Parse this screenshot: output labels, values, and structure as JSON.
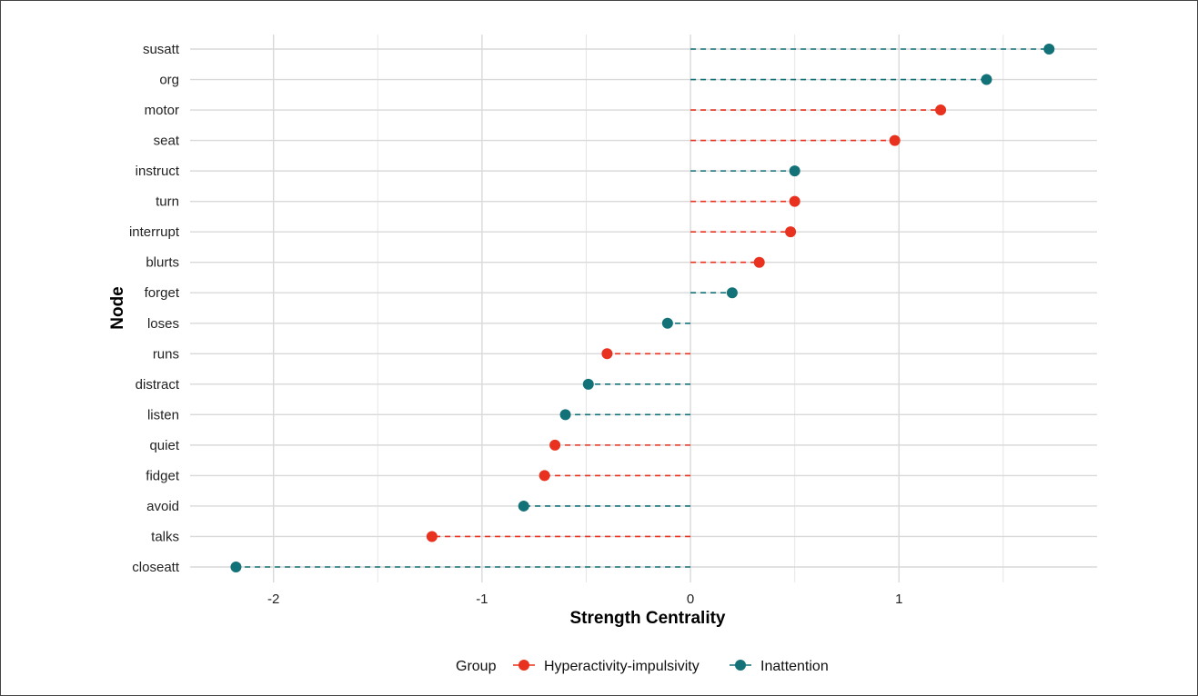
{
  "chart_data": {
    "type": "scatter",
    "style": "lollipop",
    "xlabel": "Strength Centrality",
    "ylabel": "Node",
    "xlim": [
      -2.4,
      1.95
    ],
    "x_ticks": [
      -2,
      -1,
      0,
      1
    ],
    "x_tick_labels": [
      "-2",
      "-1",
      "0",
      "1"
    ],
    "grid": true,
    "legend": {
      "title": "Group",
      "position": "bottom",
      "entries": [
        "Hyperactivity-impulsivity",
        "Inattention"
      ]
    },
    "colors": {
      "Hyperactivity-impulsivity": "#e8321f",
      "Inattention": "#137178"
    },
    "categories": [
      "susatt",
      "org",
      "motor",
      "seat",
      "instruct",
      "turn",
      "interrupt",
      "blurts",
      "forget",
      "loses",
      "runs",
      "distract",
      "listen",
      "quiet",
      "fidget",
      "avoid",
      "talks",
      "closeatt"
    ],
    "points": [
      {
        "node": "susatt",
        "value": 1.72,
        "group": "Inattention"
      },
      {
        "node": "org",
        "value": 1.42,
        "group": "Inattention"
      },
      {
        "node": "motor",
        "value": 1.2,
        "group": "Hyperactivity-impulsivity"
      },
      {
        "node": "seat",
        "value": 0.98,
        "group": "Hyperactivity-impulsivity"
      },
      {
        "node": "instruct",
        "value": 0.5,
        "group": "Inattention"
      },
      {
        "node": "turn",
        "value": 0.5,
        "group": "Hyperactivity-impulsivity"
      },
      {
        "node": "interrupt",
        "value": 0.48,
        "group": "Hyperactivity-impulsivity"
      },
      {
        "node": "blurts",
        "value": 0.33,
        "group": "Hyperactivity-impulsivity"
      },
      {
        "node": "forget",
        "value": 0.2,
        "group": "Inattention"
      },
      {
        "node": "loses",
        "value": -0.11,
        "group": "Inattention"
      },
      {
        "node": "runs",
        "value": -0.4,
        "group": "Hyperactivity-impulsivity"
      },
      {
        "node": "distract",
        "value": -0.49,
        "group": "Inattention"
      },
      {
        "node": "listen",
        "value": -0.6,
        "group": "Inattention"
      },
      {
        "node": "quiet",
        "value": -0.65,
        "group": "Hyperactivity-impulsivity"
      },
      {
        "node": "fidget",
        "value": -0.7,
        "group": "Hyperactivity-impulsivity"
      },
      {
        "node": "avoid",
        "value": -0.8,
        "group": "Inattention"
      },
      {
        "node": "talks",
        "value": -1.24,
        "group": "Hyperactivity-impulsivity"
      },
      {
        "node": "closeatt",
        "value": -2.18,
        "group": "Inattention"
      }
    ]
  }
}
